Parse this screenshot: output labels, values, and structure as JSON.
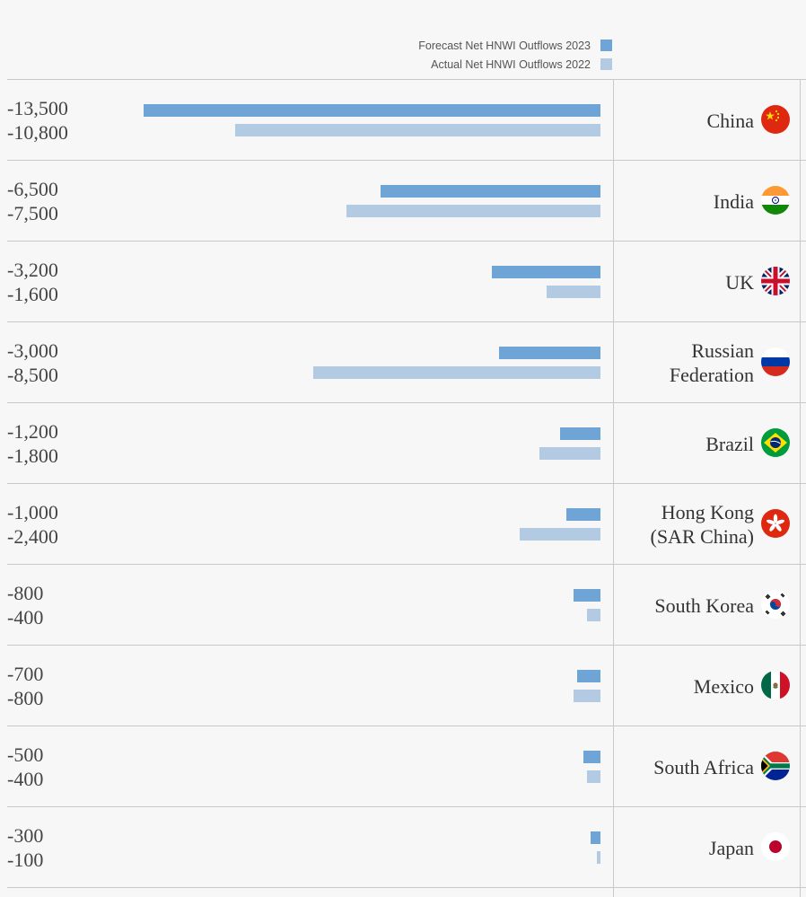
{
  "legend": {
    "forecast_label": "Forecast Net HNWI Outflows 2023",
    "actual_label": "Actual Net HNWI Outflows 2022"
  },
  "colors": {
    "forecast": "#6fa4d6",
    "actual": "#b2cbe2"
  },
  "chart_data": {
    "type": "bar",
    "orientation": "horizontal",
    "series": [
      {
        "name": "Forecast Net HNWI Outflows 2023",
        "values": [
          -13500,
          -6500,
          -3200,
          -3000,
          -1200,
          -1000,
          -800,
          -700,
          -500,
          -300
        ]
      },
      {
        "name": "Actual Net HNWI Outflows 2022",
        "values": [
          -10800,
          -7500,
          -1600,
          -8500,
          -1800,
          -2400,
          -400,
          -800,
          -400,
          -100
        ]
      }
    ],
    "categories": [
      "China",
      "India",
      "UK",
      "Russian Federation",
      "Brazil",
      "Hong Kong (SAR China)",
      "South Korea",
      "Mexico",
      "South Africa",
      "Japan"
    ],
    "legend_position": "top-right"
  },
  "rows": [
    {
      "country": "China",
      "flag_icon": "china-flag-icon",
      "forecast_text": "-13,500",
      "actual_text": "-10,800"
    },
    {
      "country": "India",
      "flag_icon": "india-flag-icon",
      "forecast_text": "-6,500",
      "actual_text": "-7,500"
    },
    {
      "country": "UK",
      "flag_icon": "uk-flag-icon",
      "forecast_text": "-3,200",
      "actual_text": "-1,600"
    },
    {
      "country": "Russian Federation",
      "flag_icon": "russia-flag-icon",
      "forecast_text": "-3,000",
      "actual_text": "-8,500"
    },
    {
      "country": "Brazil",
      "flag_icon": "brazil-flag-icon",
      "forecast_text": "-1,200",
      "actual_text": "-1,800"
    },
    {
      "country": "Hong Kong (SAR China)",
      "flag_icon": "hong-kong-flag-icon",
      "forecast_text": "-1,000",
      "actual_text": "-2,400"
    },
    {
      "country": "South Korea",
      "flag_icon": "south-korea-flag-icon",
      "forecast_text": "-800",
      "actual_text": "-400"
    },
    {
      "country": "Mexico",
      "flag_icon": "mexico-flag-icon",
      "forecast_text": "-700",
      "actual_text": "-800"
    },
    {
      "country": "South Africa",
      "flag_icon": "south-africa-flag-icon",
      "forecast_text": "-500",
      "actual_text": "-400"
    },
    {
      "country": "Japan",
      "flag_icon": "japan-flag-icon",
      "forecast_text": "-300",
      "actual_text": "-100"
    }
  ]
}
